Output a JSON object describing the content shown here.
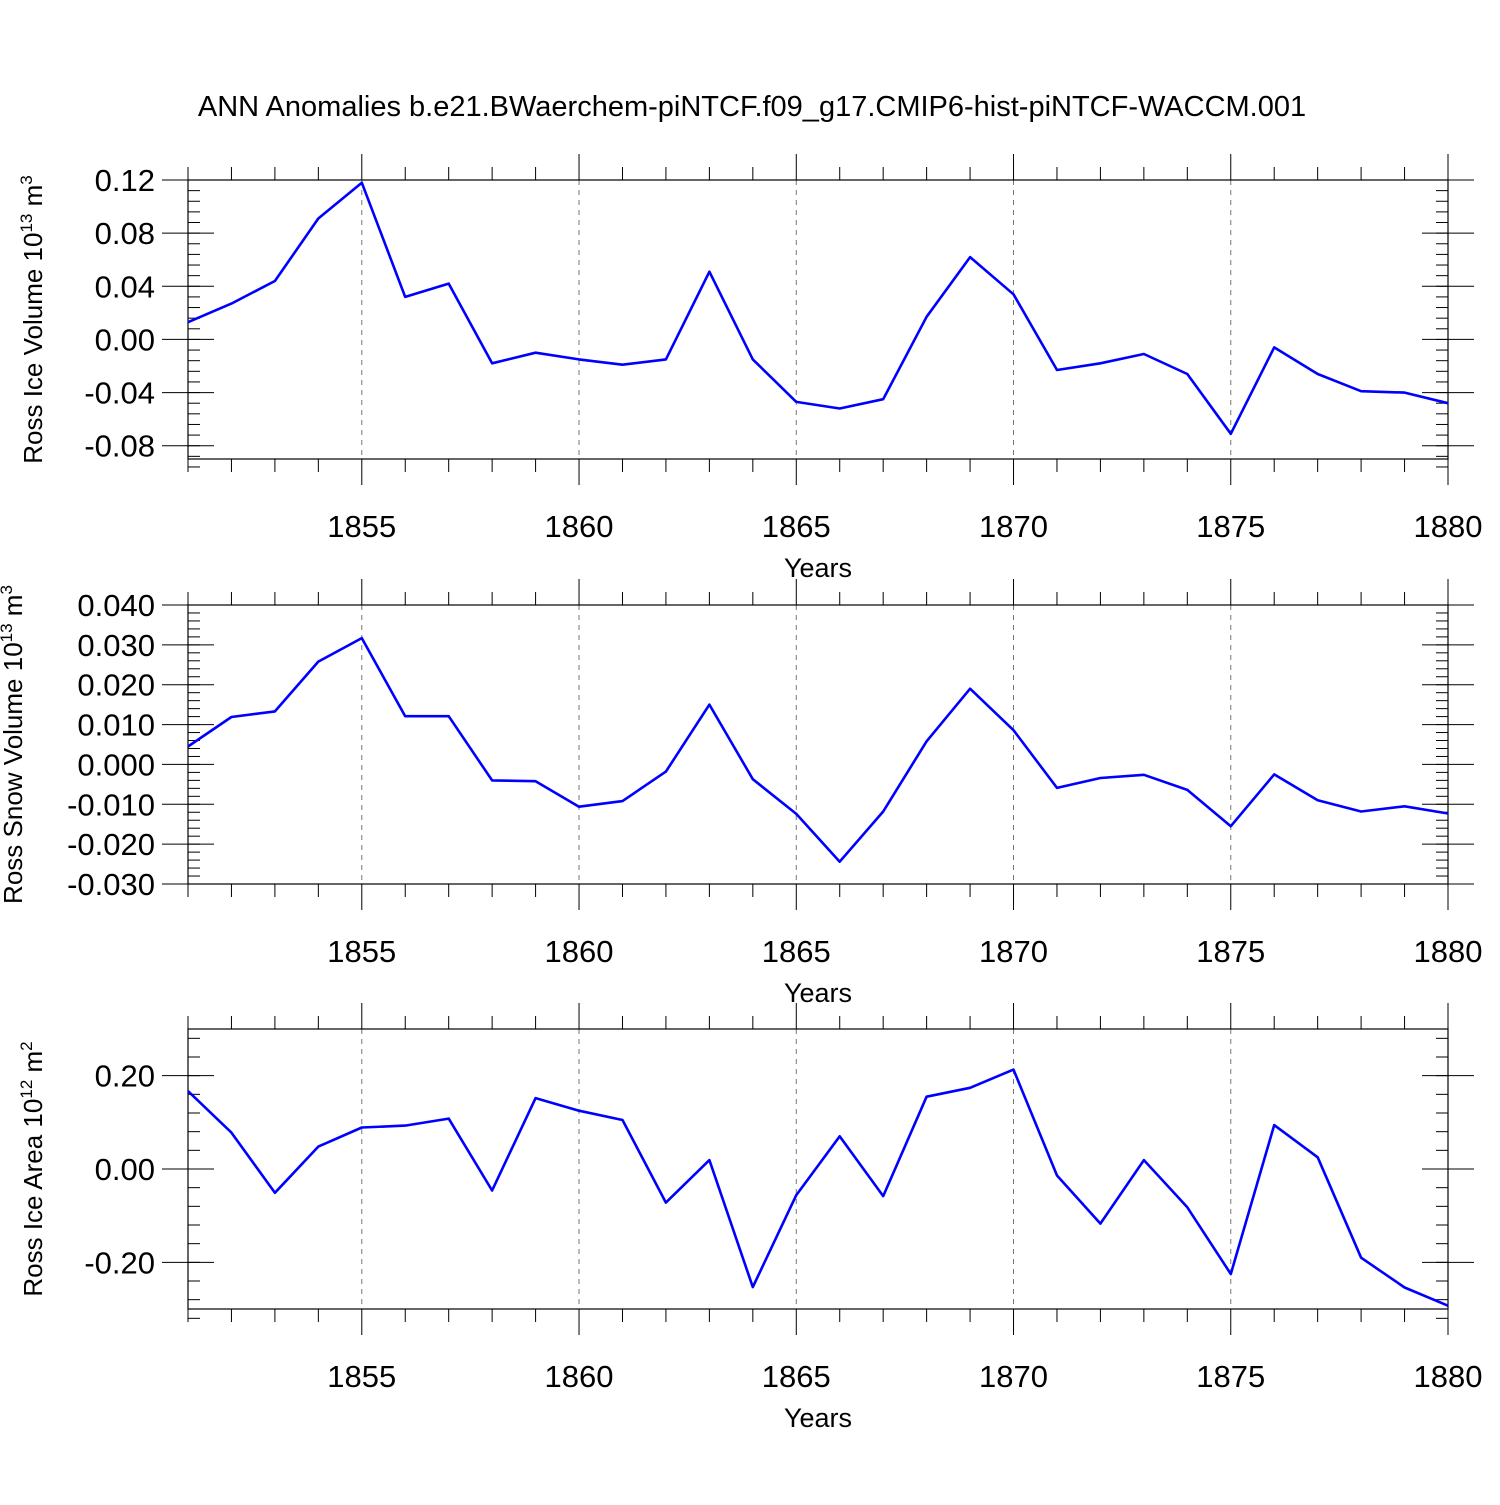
{
  "title": "ANN Anomalies b.e21.BWaerchem-piNTCF.f09_g17.CMIP6-hist-piNTCF-WACCM.001",
  "line_color": "#0000ff",
  "chart_data": [
    {
      "type": "line",
      "ylabel_base": "Ross Ice Volume 10",
      "ylabel_exp": "13",
      "ylabel_unit": " m",
      "ylabel_unit_exp": "3",
      "xlabel": "Years",
      "xlim": [
        1851,
        1880
      ],
      "ylim": [
        -0.09,
        0.12
      ],
      "major_yticks": [
        -0.08,
        -0.04,
        0.0,
        0.04,
        0.08,
        0.12
      ],
      "ytick_labels": [
        "-0.08",
        "-0.04",
        "0.00",
        "0.04",
        "0.08",
        "0.12"
      ],
      "xticks": [
        1855,
        1860,
        1865,
        1870,
        1875,
        1880
      ],
      "xtick_labels": [
        "1855",
        "1860",
        "1865",
        "1870",
        "1875",
        "1880"
      ],
      "x": [
        1851,
        1852,
        1853,
        1854,
        1855,
        1856,
        1857,
        1858,
        1859,
        1860,
        1861,
        1862,
        1863,
        1864,
        1865,
        1866,
        1867,
        1868,
        1869,
        1870,
        1871,
        1872,
        1873,
        1874,
        1875,
        1876,
        1877,
        1878,
        1879,
        1880
      ],
      "y": [
        0.013,
        0.027,
        0.044,
        0.091,
        0.118,
        0.032,
        0.042,
        -0.018,
        -0.01,
        -0.015,
        -0.019,
        -0.015,
        0.051,
        -0.015,
        -0.047,
        -0.052,
        -0.045,
        0.017,
        0.062,
        0.034,
        -0.023,
        -0.018,
        -0.011,
        -0.026,
        -0.071,
        -0.006,
        -0.026,
        -0.039,
        -0.04,
        -0.048
      ]
    },
    {
      "type": "line",
      "ylabel_base": "Ross Snow Volume 10",
      "ylabel_exp": "13",
      "ylabel_unit": " m",
      "ylabel_unit_exp": "3",
      "xlabel": "Years",
      "xlim": [
        1851,
        1880
      ],
      "ylim": [
        -0.03,
        0.04
      ],
      "major_yticks": [
        -0.03,
        -0.02,
        -0.01,
        0.0,
        0.01,
        0.02,
        0.03,
        0.04
      ],
      "ytick_labels": [
        "-0.030",
        "-0.020",
        "-0.010",
        "0.000",
        "0.010",
        "0.020",
        "0.030",
        "0.040"
      ],
      "xticks": [
        1855,
        1860,
        1865,
        1870,
        1875,
        1880
      ],
      "xtick_labels": [
        "1855",
        "1860",
        "1865",
        "1870",
        "1875",
        "1880"
      ],
      "x": [
        1851,
        1852,
        1853,
        1854,
        1855,
        1856,
        1857,
        1858,
        1859,
        1860,
        1861,
        1862,
        1863,
        1864,
        1865,
        1866,
        1867,
        1868,
        1869,
        1870,
        1871,
        1872,
        1873,
        1874,
        1875,
        1876,
        1877,
        1878,
        1879,
        1880
      ],
      "y": [
        0.0045,
        0.0119,
        0.0133,
        0.0258,
        0.0317,
        0.0121,
        0.0121,
        -0.004,
        -0.0042,
        -0.0106,
        -0.0092,
        -0.0018,
        0.015,
        -0.0037,
        -0.0124,
        -0.0244,
        -0.0118,
        0.0058,
        0.019,
        0.0086,
        -0.0059,
        -0.0034,
        -0.0026,
        -0.0064,
        -0.0155,
        -0.0025,
        -0.009,
        -0.0118,
        -0.0105,
        -0.0123
      ]
    },
    {
      "type": "line",
      "ylabel_base": "Ross Ice Area 10",
      "ylabel_exp": "12",
      "ylabel_unit": " m",
      "ylabel_unit_exp": "2",
      "xlabel": "Years",
      "xlim": [
        1851,
        1880
      ],
      "ylim": [
        -0.3,
        0.3
      ],
      "major_yticks": [
        -0.2,
        0.0,
        0.2
      ],
      "ytick_labels": [
        "-0.20",
        "0.00",
        "0.20"
      ],
      "xticks": [
        1855,
        1860,
        1865,
        1870,
        1875,
        1880
      ],
      "xtick_labels": [
        "1855",
        "1860",
        "1865",
        "1870",
        "1875",
        "1880"
      ],
      "x": [
        1851,
        1852,
        1853,
        1854,
        1855,
        1856,
        1857,
        1858,
        1859,
        1860,
        1861,
        1862,
        1863,
        1864,
        1865,
        1866,
        1867,
        1868,
        1869,
        1870,
        1871,
        1872,
        1873,
        1874,
        1875,
        1876,
        1877,
        1878,
        1879,
        1880
      ],
      "y": [
        0.167,
        0.078,
        -0.051,
        0.048,
        0.089,
        0.093,
        0.108,
        -0.046,
        0.152,
        0.125,
        0.105,
        -0.072,
        0.019,
        -0.253,
        -0.056,
        0.07,
        -0.058,
        0.155,
        0.174,
        0.213,
        -0.014,
        -0.117,
        0.019,
        -0.082,
        -0.225,
        0.094,
        0.025,
        -0.19,
        -0.254,
        -0.293
      ]
    }
  ]
}
